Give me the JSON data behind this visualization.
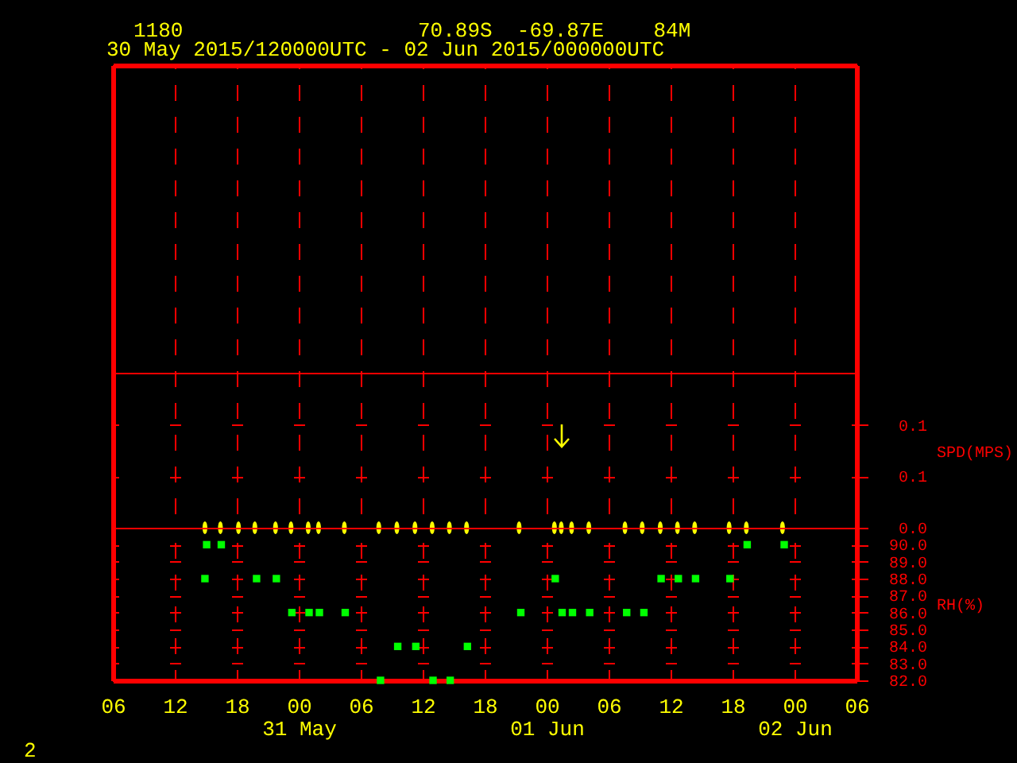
{
  "chart_data": [
    {
      "type": "scatter",
      "title": "30 May 2015/120000UTC - 02 Jun 2015/000000UTC",
      "annotations": [
        "1180",
        "70.89S  -69.87E    84M"
      ],
      "ylabel": "SPD(MPS)",
      "x": [
        "2015-05-30T14:55",
        "2015-05-30T16:25",
        "2015-05-30T18:10",
        "2015-05-30T19:45",
        "2015-05-30T21:45",
        "2015-05-30T23:15",
        "2015-05-31T00:55",
        "2015-05-31T01:55",
        "2015-05-31T04:25",
        "2015-05-31T07:45",
        "2015-05-31T09:30",
        "2015-05-31T11:15",
        "2015-05-31T12:55",
        "2015-05-31T14:35",
        "2015-05-31T16:15",
        "2015-05-31T21:20",
        "2015-06-01T00:45",
        "2015-06-01T01:25",
        "2015-06-01T02:25",
        "2015-06-01T04:05",
        "2015-06-01T07:35",
        "2015-06-01T09:15",
        "2015-06-01T11:00",
        "2015-06-01T12:40",
        "2015-06-01T14:20",
        "2015-06-01T17:40",
        "2015-06-01T19:20",
        "2015-06-01T22:50"
      ],
      "series": [
        {
          "color": "#ffff00",
          "values": [
            0,
            0,
            0,
            0,
            0,
            0,
            0,
            0,
            0,
            0,
            0,
            0,
            0,
            0,
            0,
            0,
            0,
            0,
            0,
            0,
            0,
            0,
            0,
            0,
            0,
            0,
            0,
            0
          ]
        }
      ],
      "xlim": [
        "2015-05-30T06:00",
        "2015-06-02T06:00"
      ],
      "xticks": [
        {
          "value": "2015-05-30T06:00",
          "label": null
        },
        {
          "value": "2015-05-30T12:00",
          "label": null
        },
        {
          "value": "2015-05-30T18:00",
          "label": null
        },
        {
          "value": "2015-05-31T00:00",
          "label": null
        },
        {
          "value": "2015-05-31T06:00",
          "label": null
        },
        {
          "value": "2015-05-31T12:00",
          "label": null
        },
        {
          "value": "2015-05-31T18:00",
          "label": null
        },
        {
          "value": "2015-06-01T00:00",
          "label": null
        },
        {
          "value": "2015-06-01T06:00",
          "label": null
        },
        {
          "value": "2015-06-01T12:00",
          "label": null
        },
        {
          "value": "2015-06-01T18:00",
          "label": null
        },
        {
          "value": "2015-06-02T00:00",
          "label": null
        },
        {
          "value": "2015-06-02T06:00",
          "label": null
        }
      ],
      "ylim": [
        0,
        0.45
      ],
      "yticks": [
        {
          "value": 0,
          "label": "0.0"
        },
        {
          "value": 0.05,
          "label": "0.1"
        },
        {
          "value": 0.1,
          "label": "0.1"
        }
      ],
      "ref_lines": [
        {
          "axis": "y",
          "value": 0.15,
          "color": "#ff0000"
        }
      ],
      "grid": true,
      "tick_labels": "y"
    },
    {
      "type": "scatter",
      "ylabel": "RH(%)",
      "annotations": [
        "2"
      ],
      "x": [
        "2015-05-30T14:55",
        "2015-05-30T15:05",
        "2015-05-30T16:30",
        "2015-05-30T19:55",
        "2015-05-30T21:50",
        "2015-05-30T23:20",
        "2015-05-31T01:00",
        "2015-05-31T02:00",
        "2015-05-31T04:30",
        "2015-05-31T07:55",
        "2015-05-31T09:35",
        "2015-05-31T11:20",
        "2015-05-31T13:00",
        "2015-05-31T14:40",
        "2015-05-31T16:20",
        "2015-05-31T21:30",
        "2015-06-01T00:50",
        "2015-06-01T01:30",
        "2015-06-01T02:30",
        "2015-06-01T04:10",
        "2015-06-01T07:45",
        "2015-06-01T09:25",
        "2015-06-01T11:05",
        "2015-06-01T12:45",
        "2015-06-01T14:25",
        "2015-06-01T17:45",
        "2015-06-01T19:25",
        "2015-06-01T23:00"
      ],
      "series": [
        {
          "color": "#00ff00",
          "values": [
            88,
            90,
            90,
            88,
            88,
            86,
            86,
            86,
            86,
            82,
            84,
            84,
            82,
            82,
            84,
            86,
            88,
            86,
            86,
            86,
            86,
            86,
            88,
            88,
            88,
            88,
            90,
            90
          ]
        }
      ],
      "marker": "square",
      "xlim": [
        "2015-05-30T06:00",
        "2015-06-02T06:00"
      ],
      "xticks": [
        {
          "value": "2015-05-30T06:00",
          "label": "06"
        },
        {
          "value": "2015-05-30T12:00",
          "label": "12"
        },
        {
          "value": "2015-05-30T18:00",
          "label": "18"
        },
        {
          "value": "2015-05-31T00:00",
          "label": "00\n31 May"
        },
        {
          "value": "2015-05-31T06:00",
          "label": "06"
        },
        {
          "value": "2015-05-31T12:00",
          "label": "12"
        },
        {
          "value": "2015-05-31T18:00",
          "label": "18"
        },
        {
          "value": "2015-06-01T00:00",
          "label": "00\n01 Jun"
        },
        {
          "value": "2015-06-01T06:00",
          "label": "06"
        },
        {
          "value": "2015-06-01T12:00",
          "label": "12"
        },
        {
          "value": "2015-06-01T18:00",
          "label": "18"
        },
        {
          "value": "2015-06-02T00:00",
          "label": "00\n02 Jun"
        },
        {
          "value": "2015-06-02T06:00",
          "label": "06"
        }
      ],
      "ylim": [
        82,
        91
      ],
      "yticks": [
        {
          "value": 82,
          "label": "82.0"
        },
        {
          "value": 83,
          "label": "83.0"
        },
        {
          "value": 84,
          "label": "84.0"
        },
        {
          "value": 85,
          "label": "85.0"
        },
        {
          "value": 86,
          "label": "86.0"
        },
        {
          "value": 87,
          "label": "87.0"
        },
        {
          "value": 88,
          "label": "88.0"
        },
        {
          "value": 89,
          "label": "89.0"
        },
        {
          "value": 90,
          "label": "90.0"
        }
      ],
      "grid": true
    }
  ]
}
